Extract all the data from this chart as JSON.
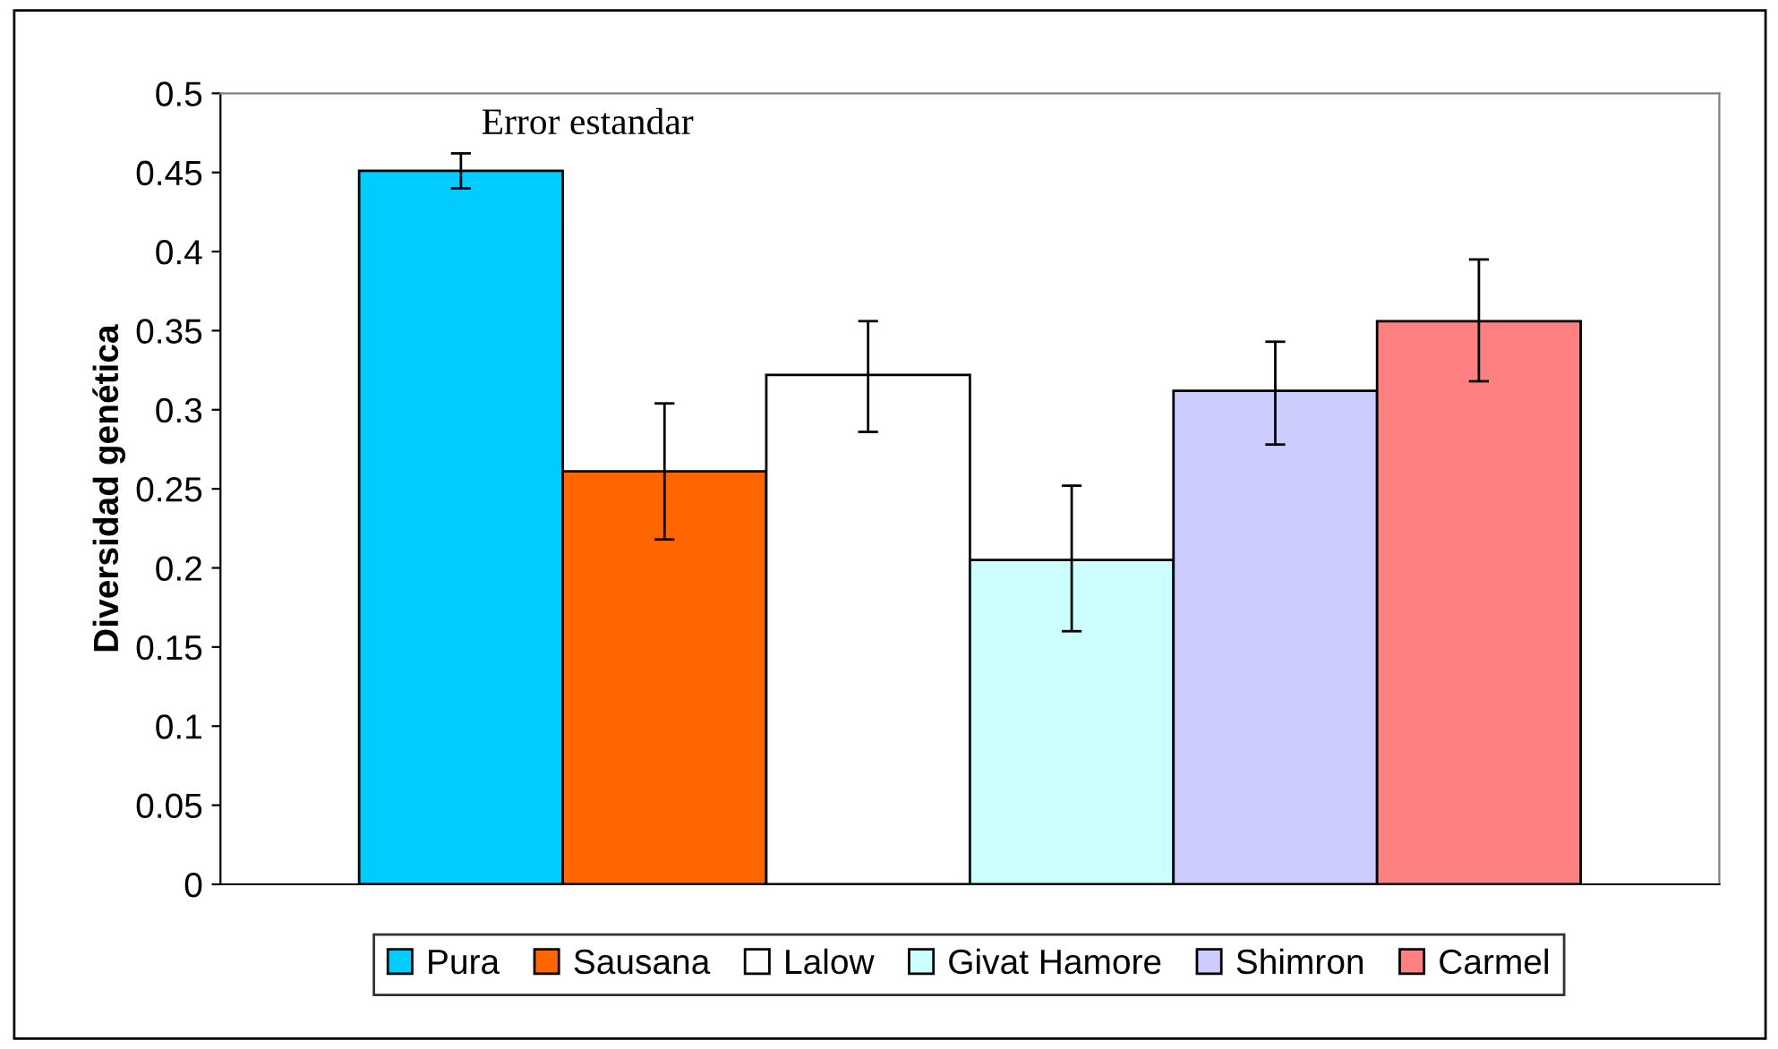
{
  "chart_data": {
    "type": "bar",
    "categories": [
      null
    ],
    "ylabel": "Diversidad genética",
    "series": [
      {
        "name": "Pura",
        "color": "#00ccff",
        "values": [
          0.451
        ],
        "errors": [
          0.011
        ]
      },
      {
        "name": "Sausana",
        "color": "#ff6600",
        "values": [
          0.261
        ],
        "errors": [
          [
            0.218,
            0.304
          ]
        ]
      },
      {
        "name": "Lalow",
        "color": "#ffffff",
        "values": [
          0.322
        ],
        "errors": [
          [
            0.286,
            0.356
          ]
        ]
      },
      {
        "name": "Givat Hamore",
        "color": "#ccffff",
        "values": [
          0.205
        ],
        "errors": [
          [
            0.16,
            0.252
          ]
        ]
      },
      {
        "name": "Shimron",
        "color": "#ccccff",
        "values": [
          0.312
        ],
        "errors": [
          [
            0.278,
            0.343
          ]
        ]
      },
      {
        "name": "Carmel",
        "color": "#ff8080",
        "values": [
          0.356
        ],
        "errors": [
          [
            0.318,
            0.395
          ]
        ]
      }
    ],
    "annotations": [
      "Error estandar"
    ],
    "ylim": [
      0,
      0.5
    ],
    "yticks": [
      0,
      0.05,
      0.1,
      0.15,
      0.2,
      0.25,
      0.3,
      0.35,
      0.4,
      0.45,
      0.5
    ],
    "grid": false,
    "legend": "bottom"
  }
}
